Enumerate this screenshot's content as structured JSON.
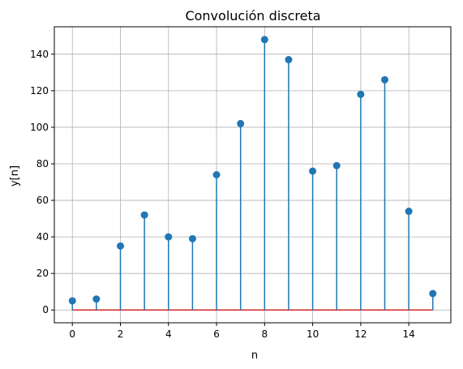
{
  "chart_data": {
    "type": "stem",
    "title": "Convolución discreta",
    "xlabel": "n",
    "ylabel": "y[n]",
    "x": [
      0,
      1,
      2,
      3,
      4,
      5,
      6,
      7,
      8,
      9,
      10,
      11,
      12,
      13,
      14,
      15
    ],
    "y": [
      5,
      6,
      35,
      52,
      40,
      39,
      74,
      102,
      148,
      137,
      76,
      79,
      118,
      126,
      54,
      9
    ],
    "xlim": [
      -0.75,
      15.75
    ],
    "ylim": [
      -7,
      155
    ],
    "xticks": [
      0,
      2,
      4,
      6,
      8,
      10,
      12,
      14
    ],
    "yticks": [
      0,
      20,
      40,
      60,
      80,
      100,
      120,
      140
    ],
    "grid": true,
    "colors": {
      "stem": "#1f77b4",
      "marker": "#1f77b4",
      "baseline": "#d62728",
      "grid": "#b0b0b0",
      "axes": "#000000"
    }
  }
}
